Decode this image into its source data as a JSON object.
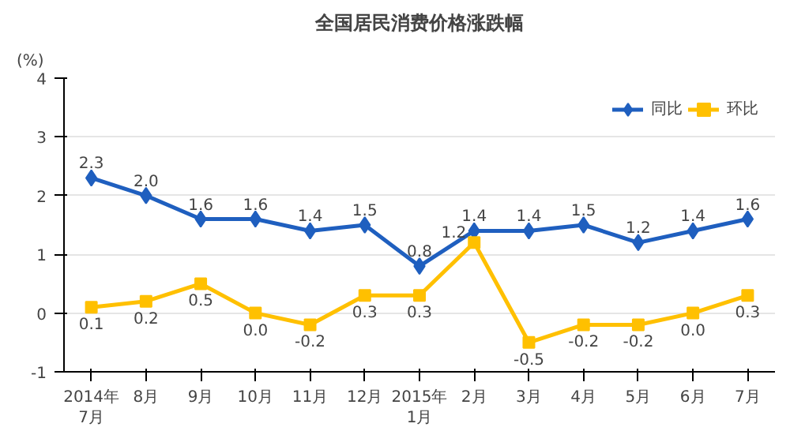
{
  "chart_data": {
    "type": "line",
    "title": "全国居民消费价格涨跌幅",
    "ylabel": "(%)",
    "categories": [
      "2014年\n7月",
      "8月",
      "9月",
      "10月",
      "11月",
      "12月",
      "2015年\n1月",
      "2月",
      "3月",
      "4月",
      "5月",
      "6月",
      "7月"
    ],
    "series": [
      {
        "name": "同比",
        "color": "#1f5fbf",
        "marker": "diamond",
        "values": [
          2.3,
          2.0,
          1.6,
          1.6,
          1.4,
          1.5,
          0.8,
          1.4,
          1.4,
          1.5,
          1.2,
          1.4,
          1.6
        ],
        "value_labels": [
          "2.3",
          "2.0",
          "1.6",
          "1.6",
          "1.4",
          "1.5",
          "0.8",
          "1.4",
          "1.4",
          "1.5",
          "1.2",
          "1.4",
          "1.6"
        ]
      },
      {
        "name": "环比",
        "color": "#ffc000",
        "marker": "square",
        "values": [
          0.1,
          0.2,
          0.5,
          0.0,
          -0.2,
          0.3,
          0.3,
          1.2,
          -0.5,
          -0.2,
          -0.2,
          0.0,
          0.3
        ],
        "value_labels": [
          "0.1",
          "0.2",
          "0.5",
          "0.0",
          "-0.2",
          "0.3",
          "0.3",
          "1.2",
          "-0.5",
          "-0.2",
          "-0.2",
          "0.0",
          "0.3"
        ]
      }
    ],
    "ylim": [
      -1,
      4
    ],
    "yticks": [
      -1,
      0,
      1,
      2,
      3,
      4
    ],
    "grid": "y",
    "legend": "top right",
    "line_style": "solid"
  }
}
